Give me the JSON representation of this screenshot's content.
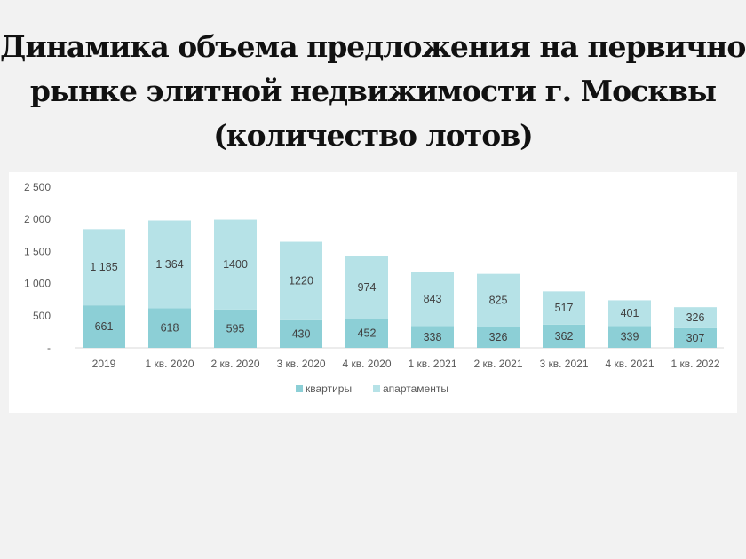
{
  "title_lines": [
    "Динамика объема предложения на первичном",
    "рынке элитной недвижимости г. Москвы",
    "(количество лотов)"
  ],
  "colors": {
    "apartments_bottom": "#8ccfd6",
    "apartments_top": "#b6e2e7",
    "background": "#f2f2f2",
    "panel": "#ffffff"
  },
  "chart_data": {
    "type": "bar",
    "stacked": true,
    "categories": [
      "2019",
      "1 кв. 2020",
      "2 кв. 2020",
      "3 кв. 2020",
      "4 кв. 2020",
      "1 кв. 2021",
      "2 кв. 2021",
      "3 кв. 2021",
      "4 кв. 2021",
      "1 кв. 2022"
    ],
    "series": [
      {
        "name": "квартиры",
        "values": [
          661,
          618,
          595,
          430,
          452,
          338,
          326,
          362,
          339,
          307
        ],
        "labels": [
          "661",
          "618",
          "595",
          "430",
          "452",
          "338",
          "326",
          "362",
          "339",
          "307"
        ],
        "color": "#8ccfd6"
      },
      {
        "name": "апартаменты",
        "values": [
          1185,
          1364,
          1400,
          1220,
          974,
          843,
          825,
          517,
          401,
          326
        ],
        "labels": [
          "1 185",
          "1 364",
          "1400",
          "1220",
          "974",
          "843",
          "825",
          "517",
          "401",
          "326"
        ],
        "color": "#b6e2e7"
      }
    ],
    "ylim": [
      0,
      2500
    ],
    "yticks": [
      0,
      500,
      1000,
      1500,
      2000,
      2500
    ],
    "ytick_labels": [
      "-",
      "500",
      "1 000",
      "1 500",
      "2 000",
      "2 500"
    ],
    "legend_position": "bottom",
    "grid": false
  }
}
